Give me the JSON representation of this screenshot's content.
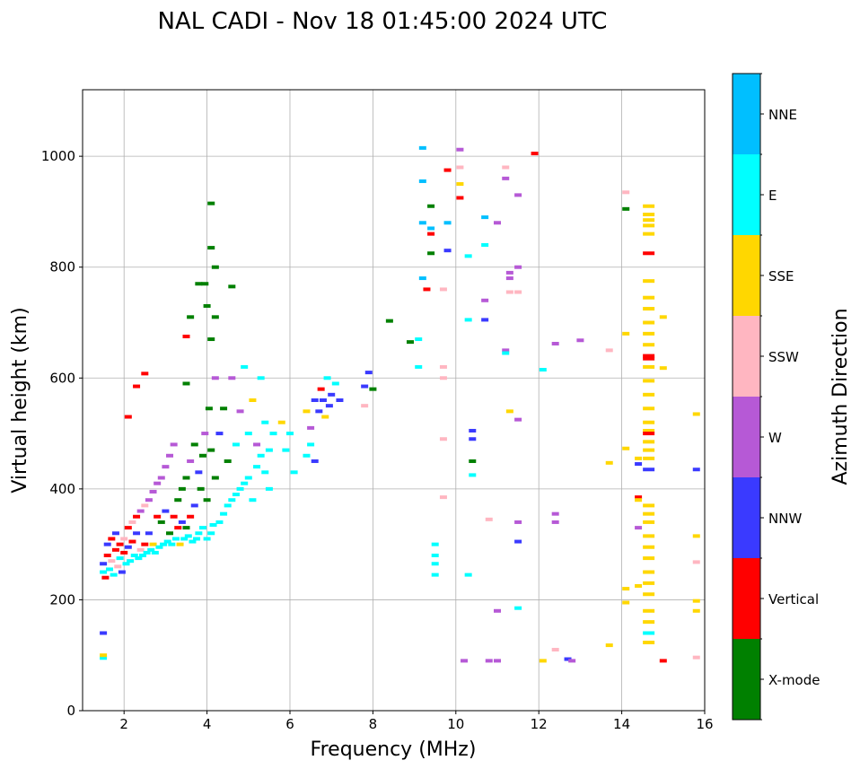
{
  "chart_data": {
    "type": "scatter",
    "title": "NAL CADI - Nov 18 01:45:00 2024 UTC",
    "xlabel": "Frequency (MHz)",
    "ylabel": "Virtual height (km)",
    "xlim": [
      1,
      16
    ],
    "ylim": [
      0,
      1120
    ],
    "xticks": [
      2,
      4,
      6,
      8,
      10,
      12,
      14,
      16
    ],
    "yticks": [
      0,
      200,
      400,
      600,
      800,
      1000
    ],
    "grid": true,
    "colorbar": {
      "label": "Azimuth Direction",
      "categories": [
        {
          "code": "X",
          "label": "X-mode",
          "color": "#008000"
        },
        {
          "code": "V",
          "label": "Vertical",
          "color": "#ff0000"
        },
        {
          "code": "NNW",
          "label": "NNW",
          "color": "#3a3aff"
        },
        {
          "code": "W",
          "label": "W",
          "color": "#b659d6"
        },
        {
          "code": "SSW",
          "label": "SSW",
          "color": "#ffb6c1"
        },
        {
          "code": "SSE",
          "label": "SSE",
          "color": "#ffd700"
        },
        {
          "code": "E",
          "label": "E",
          "color": "#00ffff"
        },
        {
          "code": "NNE",
          "label": "NNE",
          "color": "#00bfff"
        }
      ]
    },
    "points": [
      [
        1.5,
        250,
        "E"
      ],
      [
        1.5,
        265,
        "NNW"
      ],
      [
        1.55,
        240,
        "V"
      ],
      [
        1.6,
        280,
        "V"
      ],
      [
        1.6,
        300,
        "NNW"
      ],
      [
        1.65,
        255,
        "E"
      ],
      [
        1.7,
        270,
        "SSW"
      ],
      [
        1.7,
        310,
        "V"
      ],
      [
        1.75,
        245,
        "E"
      ],
      [
        1.8,
        290,
        "V"
      ],
      [
        1.8,
        320,
        "NNW"
      ],
      [
        1.85,
        260,
        "SSW"
      ],
      [
        1.9,
        300,
        "V"
      ],
      [
        1.9,
        275,
        "E"
      ],
      [
        1.95,
        250,
        "NNW"
      ],
      [
        2.0,
        285,
        "V"
      ],
      [
        2.0,
        310,
        "SSW"
      ],
      [
        2.05,
        265,
        "E"
      ],
      [
        2.1,
        330,
        "V"
      ],
      [
        2.1,
        295,
        "NNW"
      ],
      [
        2.15,
        270,
        "E"
      ],
      [
        2.2,
        340,
        "SSW"
      ],
      [
        2.2,
        305,
        "V"
      ],
      [
        2.25,
        280,
        "E"
      ],
      [
        2.3,
        350,
        "V"
      ],
      [
        2.3,
        320,
        "NNW"
      ],
      [
        2.35,
        275,
        "E"
      ],
      [
        2.4,
        360,
        "W"
      ],
      [
        2.4,
        290,
        "SSW"
      ],
      [
        2.45,
        280,
        "E"
      ],
      [
        2.5,
        370,
        "SSW"
      ],
      [
        2.5,
        300,
        "V"
      ],
      [
        2.55,
        285,
        "E"
      ],
      [
        2.6,
        380,
        "W"
      ],
      [
        2.6,
        320,
        "NNW"
      ],
      [
        2.65,
        290,
        "E"
      ],
      [
        2.7,
        300,
        "SSE"
      ],
      [
        2.7,
        395,
        "W"
      ],
      [
        2.75,
        285,
        "E"
      ],
      [
        2.8,
        410,
        "W"
      ],
      [
        2.8,
        350,
        "V"
      ],
      [
        2.85,
        295,
        "E"
      ],
      [
        2.9,
        420,
        "W"
      ],
      [
        2.9,
        340,
        "X"
      ],
      [
        2.95,
        300,
        "E"
      ],
      [
        3.0,
        440,
        "W"
      ],
      [
        3.0,
        360,
        "NNW"
      ],
      [
        3.05,
        305,
        "E"
      ],
      [
        3.1,
        460,
        "W"
      ],
      [
        3.1,
        320,
        "X"
      ],
      [
        3.15,
        300,
        "E"
      ],
      [
        3.2,
        480,
        "W"
      ],
      [
        3.2,
        350,
        "V"
      ],
      [
        3.25,
        310,
        "E"
      ],
      [
        3.3,
        380,
        "X"
      ],
      [
        3.3,
        330,
        "V"
      ],
      [
        3.35,
        300,
        "SSE"
      ],
      [
        3.4,
        400,
        "X"
      ],
      [
        3.4,
        340,
        "NNW"
      ],
      [
        3.45,
        310,
        "E"
      ],
      [
        3.5,
        420,
        "X"
      ],
      [
        3.5,
        330,
        "X"
      ],
      [
        3.55,
        315,
        "E"
      ],
      [
        3.6,
        450,
        "W"
      ],
      [
        3.6,
        350,
        "V"
      ],
      [
        3.65,
        305,
        "E"
      ],
      [
        3.7,
        480,
        "X"
      ],
      [
        3.7,
        370,
        "NNW"
      ],
      [
        3.75,
        310,
        "E"
      ],
      [
        3.8,
        430,
        "NNW"
      ],
      [
        3.8,
        320,
        "E"
      ],
      [
        3.85,
        400,
        "X"
      ],
      [
        3.9,
        460,
        "X"
      ],
      [
        3.9,
        330,
        "E"
      ],
      [
        3.95,
        500,
        "W"
      ],
      [
        4.0,
        310,
        "E"
      ],
      [
        4.0,
        380,
        "X"
      ],
      [
        4.05,
        545,
        "X"
      ],
      [
        4.1,
        320,
        "E"
      ],
      [
        4.1,
        470,
        "X"
      ],
      [
        4.15,
        335,
        "E"
      ],
      [
        4.2,
        420,
        "X"
      ],
      [
        4.2,
        600,
        "W"
      ],
      [
        4.3,
        340,
        "E"
      ],
      [
        4.3,
        500,
        "NNW"
      ],
      [
        4.4,
        355,
        "E"
      ],
      [
        4.4,
        545,
        "X"
      ],
      [
        4.5,
        370,
        "E"
      ],
      [
        4.5,
        450,
        "X"
      ],
      [
        4.6,
        380,
        "E"
      ],
      [
        4.6,
        600,
        "W"
      ],
      [
        4.7,
        390,
        "E"
      ],
      [
        4.7,
        480,
        "E"
      ],
      [
        4.8,
        400,
        "E"
      ],
      [
        4.8,
        540,
        "W"
      ],
      [
        4.9,
        410,
        "E"
      ],
      [
        4.9,
        620,
        "E"
      ],
      [
        5.0,
        420,
        "E"
      ],
      [
        5.0,
        500,
        "E"
      ],
      [
        5.1,
        380,
        "E"
      ],
      [
        5.1,
        560,
        "SSE"
      ],
      [
        5.2,
        440,
        "E"
      ],
      [
        5.2,
        480,
        "W"
      ],
      [
        5.3,
        460,
        "E"
      ],
      [
        5.3,
        600,
        "E"
      ],
      [
        5.4,
        430,
        "E"
      ],
      [
        5.4,
        520,
        "E"
      ],
      [
        5.5,
        470,
        "E"
      ],
      [
        5.5,
        400,
        "E"
      ],
      [
        5.6,
        500,
        "E"
      ],
      [
        5.8,
        520,
        "SSE"
      ],
      [
        5.9,
        470,
        "E"
      ],
      [
        6.0,
        500,
        "E"
      ],
      [
        6.1,
        430,
        "E"
      ],
      [
        6.4,
        540,
        "SSE"
      ],
      [
        6.4,
        460,
        "E"
      ],
      [
        6.5,
        510,
        "W"
      ],
      [
        6.5,
        480,
        "E"
      ],
      [
        6.6,
        560,
        "NNW"
      ],
      [
        6.6,
        450,
        "NNW"
      ],
      [
        6.7,
        540,
        "NNW"
      ],
      [
        6.75,
        580,
        "V"
      ],
      [
        6.8,
        560,
        "NNW"
      ],
      [
        6.85,
        530,
        "SSE"
      ],
      [
        6.9,
        600,
        "E"
      ],
      [
        6.95,
        550,
        "NNW"
      ],
      [
        7.0,
        570,
        "NNW"
      ],
      [
        7.1,
        590,
        "E"
      ],
      [
        7.2,
        560,
        "NNW"
      ],
      [
        7.8,
        585,
        "NNW"
      ],
      [
        7.8,
        550,
        "SSW"
      ],
      [
        7.9,
        610,
        "NNW"
      ],
      [
        8.0,
        580,
        "X"
      ],
      [
        3.6,
        710,
        "X"
      ],
      [
        3.8,
        770,
        "X"
      ],
      [
        3.95,
        770,
        "X"
      ],
      [
        4.0,
        730,
        "X"
      ],
      [
        4.1,
        915,
        "X"
      ],
      [
        4.1,
        835,
        "X"
      ],
      [
        4.2,
        800,
        "X"
      ],
      [
        4.2,
        710,
        "X"
      ],
      [
        4.6,
        765,
        "X"
      ],
      [
        4.1,
        670,
        "X"
      ],
      [
        3.5,
        675,
        "V"
      ],
      [
        3.5,
        590,
        "X"
      ],
      [
        2.5,
        608,
        "V"
      ],
      [
        2.3,
        585,
        "V"
      ],
      [
        2.1,
        530,
        "V"
      ],
      [
        1.5,
        140,
        "NNW"
      ],
      [
        1.5,
        95,
        "E"
      ],
      [
        1.5,
        100,
        "SSE"
      ],
      [
        8.4,
        703,
        "X"
      ],
      [
        8.9,
        665,
        "X"
      ],
      [
        9.1,
        620,
        "E"
      ],
      [
        9.1,
        670,
        "E"
      ],
      [
        9.2,
        1015,
        "NNE"
      ],
      [
        9.2,
        955,
        "NNE"
      ],
      [
        9.2,
        880,
        "NNE"
      ],
      [
        9.2,
        780,
        "NNE"
      ],
      [
        9.4,
        910,
        "X"
      ],
      [
        9.4,
        870,
        "NNE"
      ],
      [
        9.4,
        860,
        "V"
      ],
      [
        9.4,
        825,
        "X"
      ],
      [
        9.3,
        760,
        "V"
      ],
      [
        9.5,
        300,
        "E"
      ],
      [
        9.5,
        280,
        "E"
      ],
      [
        9.5,
        265,
        "E"
      ],
      [
        9.5,
        245,
        "E"
      ],
      [
        9.7,
        600,
        "SSW"
      ],
      [
        9.7,
        620,
        "SSW"
      ],
      [
        9.7,
        760,
        "SSW"
      ],
      [
        9.7,
        490,
        "SSW"
      ],
      [
        9.7,
        385,
        "SSW"
      ],
      [
        9.8,
        975,
        "V"
      ],
      [
        9.8,
        880,
        "NNE"
      ],
      [
        9.8,
        830,
        "NNW"
      ],
      [
        10.1,
        1012,
        "W"
      ],
      [
        10.1,
        980,
        "SSW"
      ],
      [
        10.1,
        925,
        "V"
      ],
      [
        10.1,
        950,
        "SSE"
      ],
      [
        10.3,
        820,
        "E"
      ],
      [
        10.3,
        705,
        "E"
      ],
      [
        10.4,
        505,
        "NNW"
      ],
      [
        10.4,
        490,
        "NNW"
      ],
      [
        10.4,
        450,
        "X"
      ],
      [
        10.4,
        425,
        "E"
      ],
      [
        10.3,
        245,
        "E"
      ],
      [
        10.2,
        90,
        "W"
      ],
      [
        10.7,
        890,
        "NNE"
      ],
      [
        10.7,
        840,
        "E"
      ],
      [
        10.7,
        740,
        "W"
      ],
      [
        10.7,
        705,
        "NNW"
      ],
      [
        10.8,
        345,
        "SSW"
      ],
      [
        10.8,
        90,
        "W"
      ],
      [
        11.0,
        880,
        "W"
      ],
      [
        11.2,
        980,
        "SSW"
      ],
      [
        11.2,
        960,
        "W"
      ],
      [
        11.2,
        650,
        "W"
      ],
      [
        11.2,
        645,
        "E"
      ],
      [
        11.3,
        790,
        "W"
      ],
      [
        11.3,
        780,
        "W"
      ],
      [
        11.3,
        755,
        "SSW"
      ],
      [
        11.3,
        540,
        "SSE"
      ],
      [
        11.5,
        930,
        "W"
      ],
      [
        11.5,
        800,
        "W"
      ],
      [
        11.5,
        755,
        "SSW"
      ],
      [
        11.5,
        525,
        "W"
      ],
      [
        11.5,
        340,
        "W"
      ],
      [
        11.5,
        305,
        "NNW"
      ],
      [
        11.5,
        185,
        "E"
      ],
      [
        11.0,
        90,
        "W"
      ],
      [
        11.0,
        180,
        "W"
      ],
      [
        11.9,
        1005,
        "V"
      ],
      [
        12.1,
        615,
        "E"
      ],
      [
        12.1,
        90,
        "SSE"
      ],
      [
        12.4,
        355,
        "W"
      ],
      [
        12.4,
        340,
        "W"
      ],
      [
        12.4,
        110,
        "SSW"
      ],
      [
        12.7,
        93,
        "NNW"
      ],
      [
        12.8,
        90,
        "W"
      ],
      [
        12.4,
        662,
        "W"
      ],
      [
        13.0,
        668,
        "W"
      ],
      [
        13.7,
        650,
        "SSW"
      ],
      [
        13.7,
        447,
        "SSE"
      ],
      [
        13.7,
        118,
        "SSE"
      ],
      [
        14.1,
        935,
        "SSW"
      ],
      [
        14.1,
        905,
        "X"
      ],
      [
        14.1,
        680,
        "SSE"
      ],
      [
        14.1,
        473,
        "SSE"
      ],
      [
        14.1,
        220,
        "SSE"
      ],
      [
        14.1,
        195,
        "SSE"
      ],
      [
        14.4,
        455,
        "SSE"
      ],
      [
        14.4,
        445,
        "NNW"
      ],
      [
        14.4,
        385,
        "V"
      ],
      [
        14.4,
        380,
        "SSE"
      ],
      [
        14.4,
        330,
        "W"
      ],
      [
        14.4,
        225,
        "SSE"
      ],
      [
        14.65,
        910,
        "SSE"
      ],
      [
        14.65,
        895,
        "SSE"
      ],
      [
        14.65,
        885,
        "SSE"
      ],
      [
        14.65,
        875,
        "SSE"
      ],
      [
        14.65,
        860,
        "SSE"
      ],
      [
        14.65,
        825,
        "V"
      ],
      [
        14.65,
        775,
        "SSE"
      ],
      [
        14.65,
        745,
        "SSE"
      ],
      [
        14.65,
        725,
        "SSE"
      ],
      [
        14.65,
        700,
        "SSE"
      ],
      [
        14.65,
        680,
        "SSE"
      ],
      [
        14.65,
        660,
        "SSE"
      ],
      [
        14.65,
        640,
        "V"
      ],
      [
        14.65,
        635,
        "V"
      ],
      [
        14.65,
        620,
        "SSE"
      ],
      [
        14.65,
        595,
        "SSE"
      ],
      [
        14.65,
        570,
        "SSE"
      ],
      [
        14.65,
        545,
        "SSE"
      ],
      [
        14.65,
        520,
        "SSE"
      ],
      [
        14.65,
        505,
        "SSE"
      ],
      [
        14.65,
        500,
        "V"
      ],
      [
        14.65,
        485,
        "SSE"
      ],
      [
        14.65,
        470,
        "SSE"
      ],
      [
        14.65,
        455,
        "SSE"
      ],
      [
        14.65,
        435,
        "NNW"
      ],
      [
        14.65,
        370,
        "SSE"
      ],
      [
        14.65,
        355,
        "SSE"
      ],
      [
        14.65,
        340,
        "SSE"
      ],
      [
        14.65,
        315,
        "SSE"
      ],
      [
        14.65,
        295,
        "SSE"
      ],
      [
        14.65,
        275,
        "SSE"
      ],
      [
        14.65,
        250,
        "SSE"
      ],
      [
        14.65,
        230,
        "SSE"
      ],
      [
        14.65,
        210,
        "SSE"
      ],
      [
        14.65,
        180,
        "SSE"
      ],
      [
        14.65,
        160,
        "SSE"
      ],
      [
        14.65,
        140,
        "E"
      ],
      [
        14.65,
        123,
        "SSE"
      ],
      [
        15.0,
        710,
        "SSE"
      ],
      [
        15.0,
        618,
        "SSE"
      ],
      [
        15.0,
        90,
        "V"
      ],
      [
        15.8,
        535,
        "SSE"
      ],
      [
        15.8,
        435,
        "NNW"
      ],
      [
        15.8,
        315,
        "SSE"
      ],
      [
        15.8,
        268,
        "SSW"
      ],
      [
        15.8,
        198,
        "SSE"
      ],
      [
        15.8,
        180,
        "SSE"
      ],
      [
        15.8,
        96,
        "SSW"
      ]
    ]
  }
}
